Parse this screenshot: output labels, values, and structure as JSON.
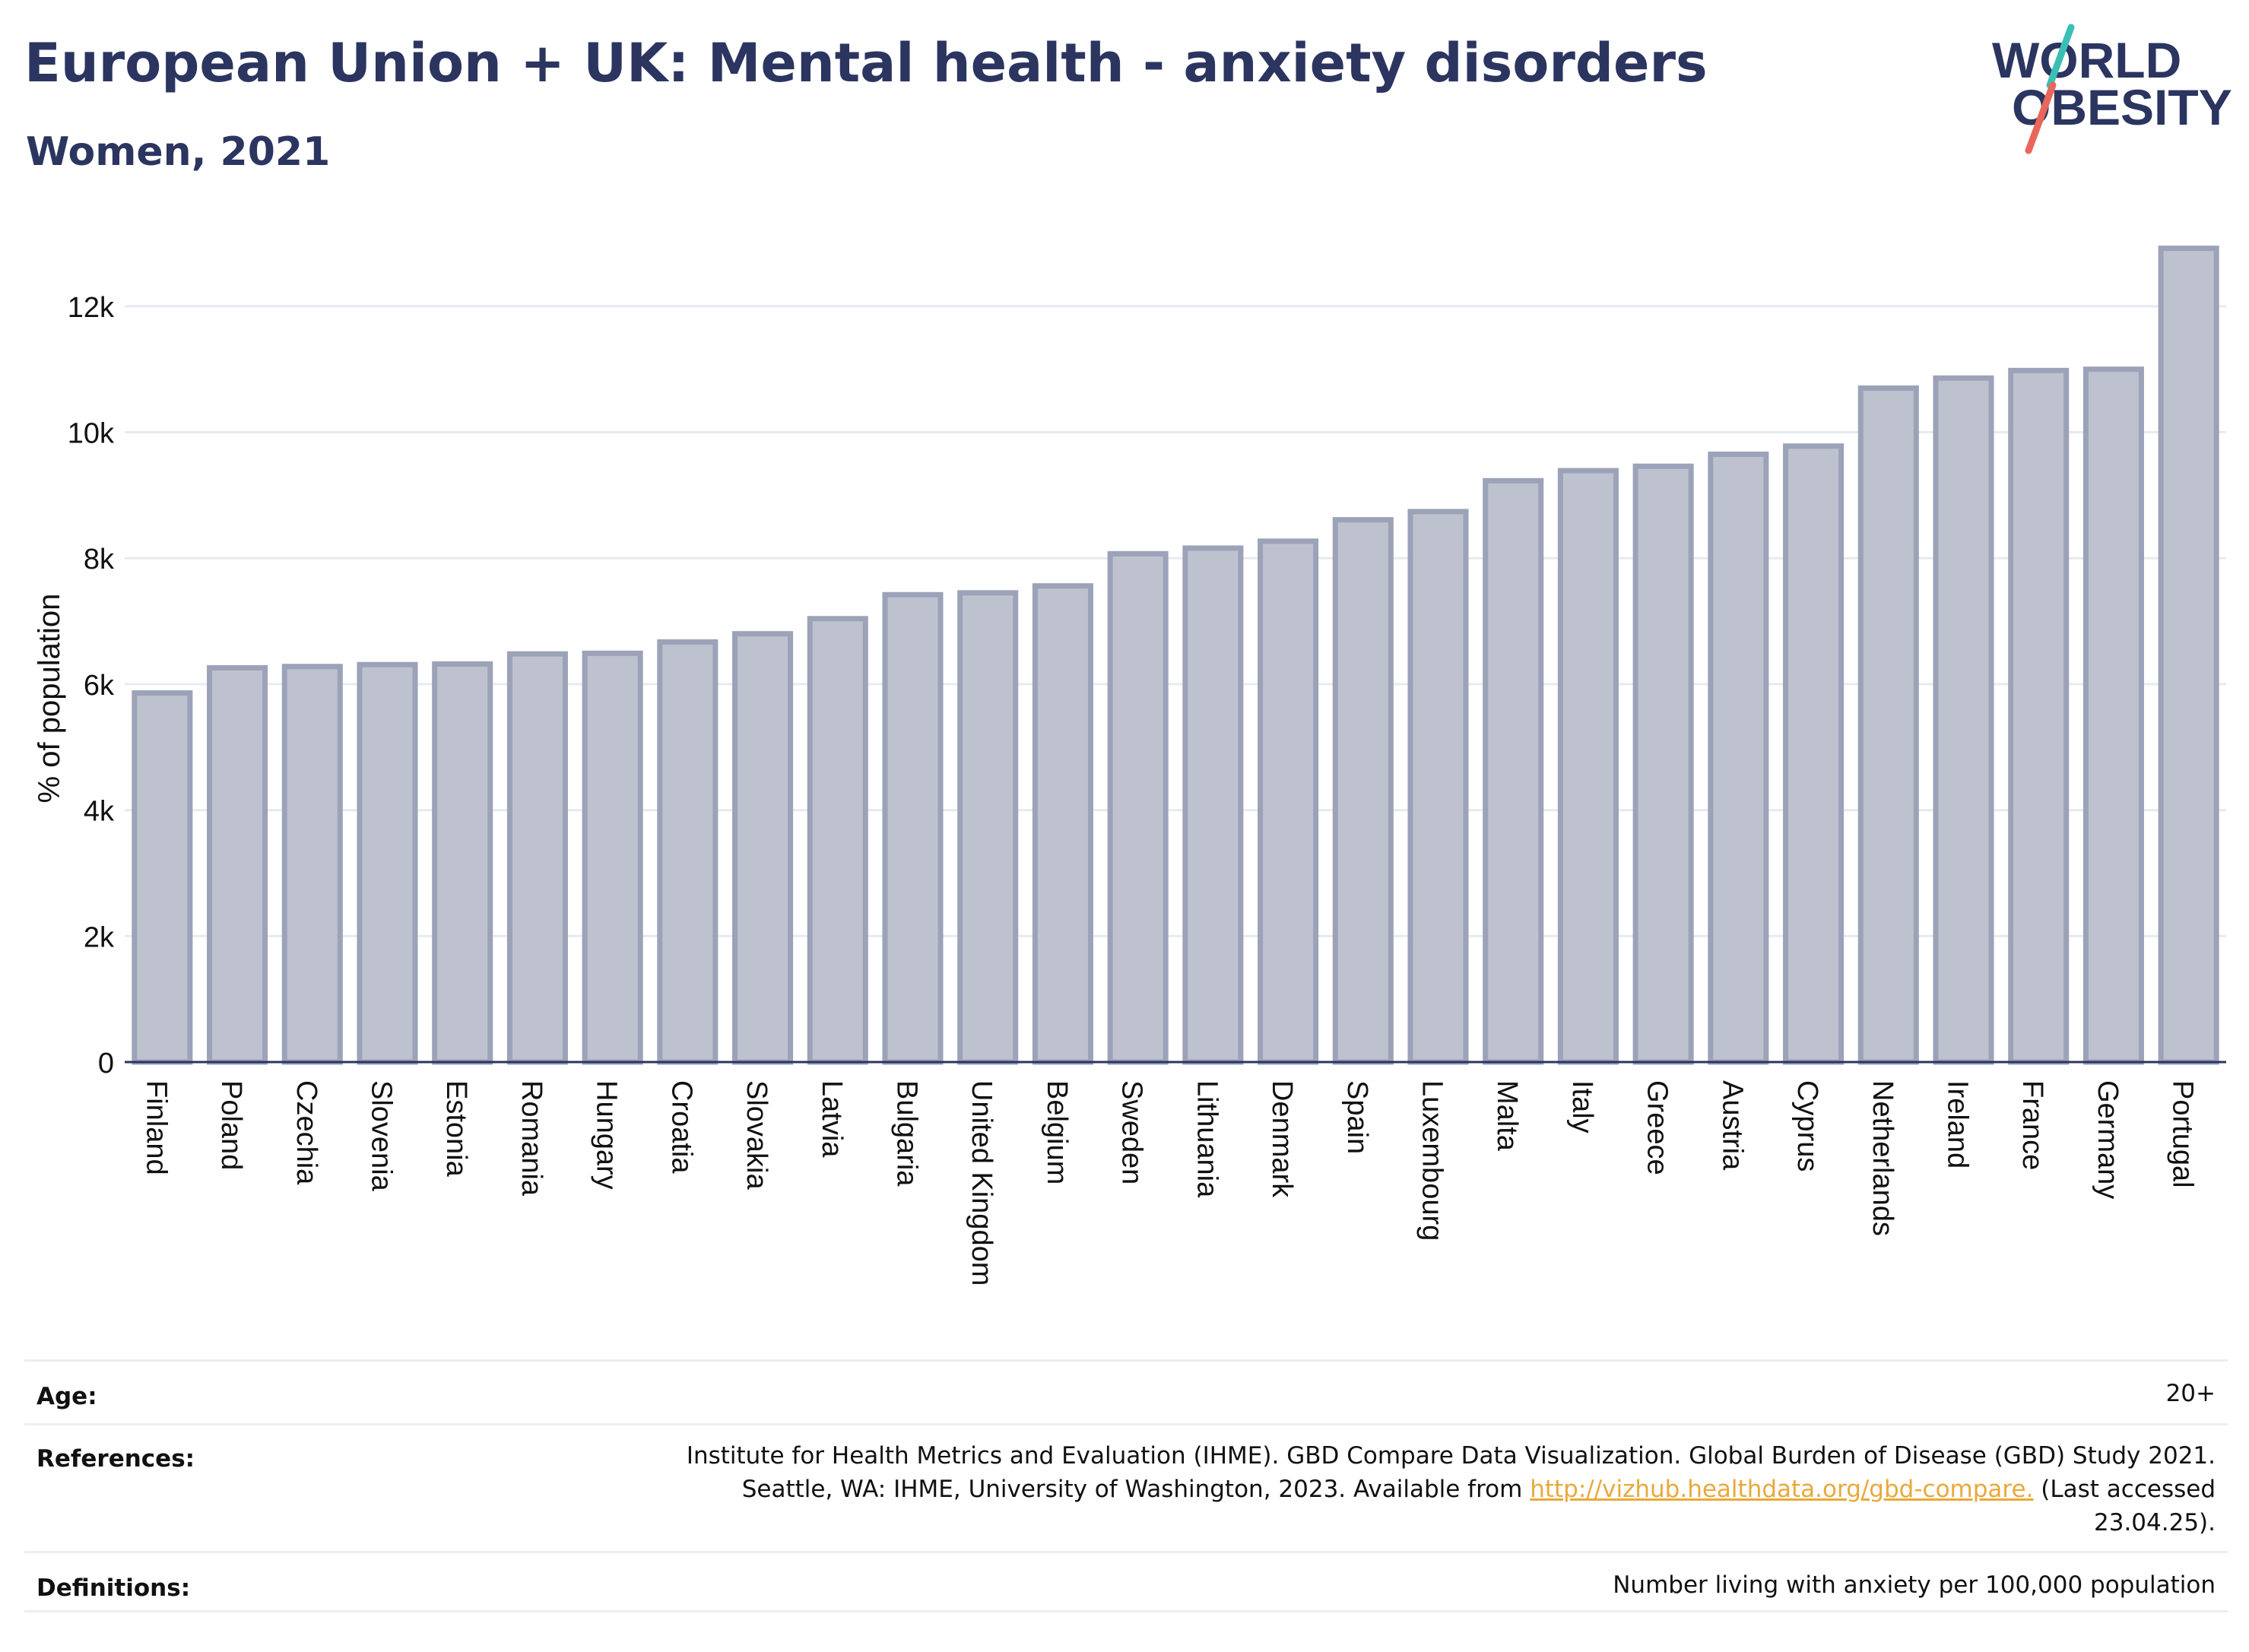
{
  "header": {
    "title": "European Union + UK: Mental health - anxiety disorders",
    "subtitle": "Women, 2021"
  },
  "logo": {
    "line1": "WORLD",
    "line2": "OBESITY",
    "accent_colors": [
      "#3bbfb5",
      "#e8675a"
    ],
    "text_color": "#2b3560"
  },
  "chart_data": {
    "type": "bar",
    "title": "European Union + UK: Mental health - anxiety disorders",
    "subtitle": "Women, 2021",
    "xlabel": "",
    "ylabel": "% of population",
    "ylim": [
      0,
      13000
    ],
    "yticks": [
      {
        "value": 0,
        "label": "0"
      },
      {
        "value": 2000,
        "label": "2k"
      },
      {
        "value": 4000,
        "label": "4k"
      },
      {
        "value": 6000,
        "label": "6k"
      },
      {
        "value": 8000,
        "label": "8k"
      },
      {
        "value": 10000,
        "label": "10k"
      },
      {
        "value": 12000,
        "label": "12k"
      }
    ],
    "grid": true,
    "bar_fill": "#bec2ce",
    "bar_stroke": "#9ca2b8",
    "categories": [
      "Finland",
      "Poland",
      "Czechia",
      "Slovenia",
      "Estonia",
      "Romania",
      "Hungary",
      "Croatia",
      "Slovakia",
      "Latvia",
      "Bulgaria",
      "United Kingdom",
      "Belgium",
      "Sweden",
      "Lithuania",
      "Denmark",
      "Spain",
      "Luxembourg",
      "Malta",
      "Italy",
      "Greece",
      "Austria",
      "Cyprus",
      "Netherlands",
      "Ireland",
      "France",
      "Germany",
      "Portugal"
    ],
    "values": [
      5860,
      6260,
      6280,
      6310,
      6320,
      6480,
      6490,
      6670,
      6800,
      7040,
      7420,
      7450,
      7560,
      8070,
      8160,
      8270,
      8610,
      8740,
      9230,
      9390,
      9460,
      9650,
      9780,
      10700,
      10860,
      10980,
      11000,
      12920
    ]
  },
  "info": {
    "age_label": "Age:",
    "age_value": "20+",
    "references_label": "References:",
    "references_line1": "Institute for Health Metrics and Evaluation (IHME). GBD Compare Data Visualization. Global Burden of Disease (GBD) Study 2021.",
    "references_line2_pre": "Seattle, WA: IHME, University of Washington, 2023. Available from ",
    "references_link": "http://vizhub.healthdata.org/gbd-compare.",
    "references_line2_post": " (Last accessed",
    "references_line3": "23.04.25).",
    "definitions_label": "Definitions:",
    "definitions_value": "Number living with anxiety per 100,000 population"
  }
}
